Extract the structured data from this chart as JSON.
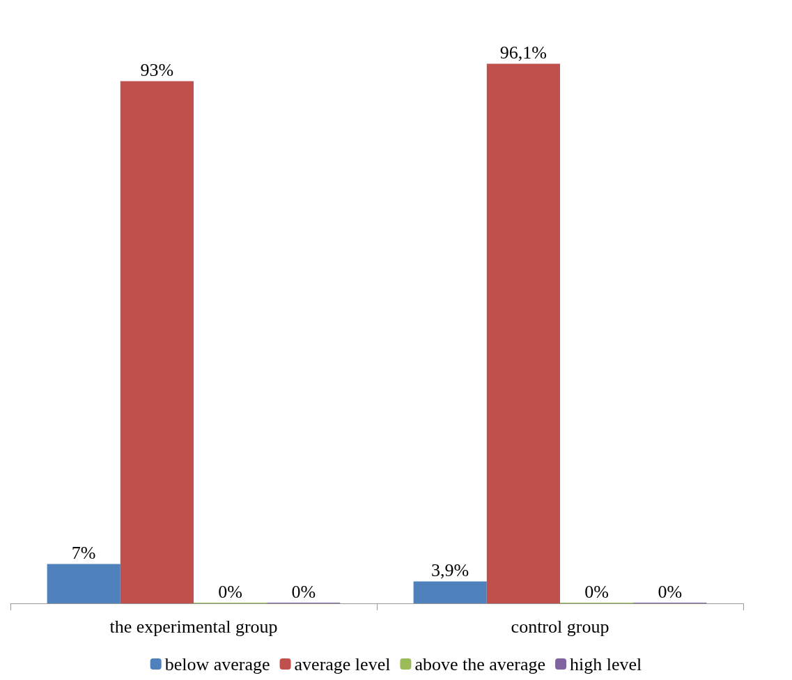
{
  "chart_data": {
    "type": "bar",
    "categories": [
      "the experimental group",
      "control group"
    ],
    "series": [
      {
        "name": "below average",
        "color": "#4f81bd",
        "values": [
          7,
          3.9
        ],
        "value_labels": [
          "7%",
          "3,9%"
        ]
      },
      {
        "name": "average level",
        "color": "#c0504d",
        "values": [
          93,
          96.1
        ],
        "value_labels": [
          "93%",
          "96,1%"
        ]
      },
      {
        "name": "above the average",
        "color": "#9bbb59",
        "values": [
          0,
          0
        ],
        "value_labels": [
          "0%",
          "0%"
        ]
      },
      {
        "name": "high level",
        "color": "#8064a2",
        "values": [
          0,
          0
        ],
        "value_labels": [
          "0%",
          "0%"
        ]
      }
    ],
    "legend": "bottom"
  }
}
